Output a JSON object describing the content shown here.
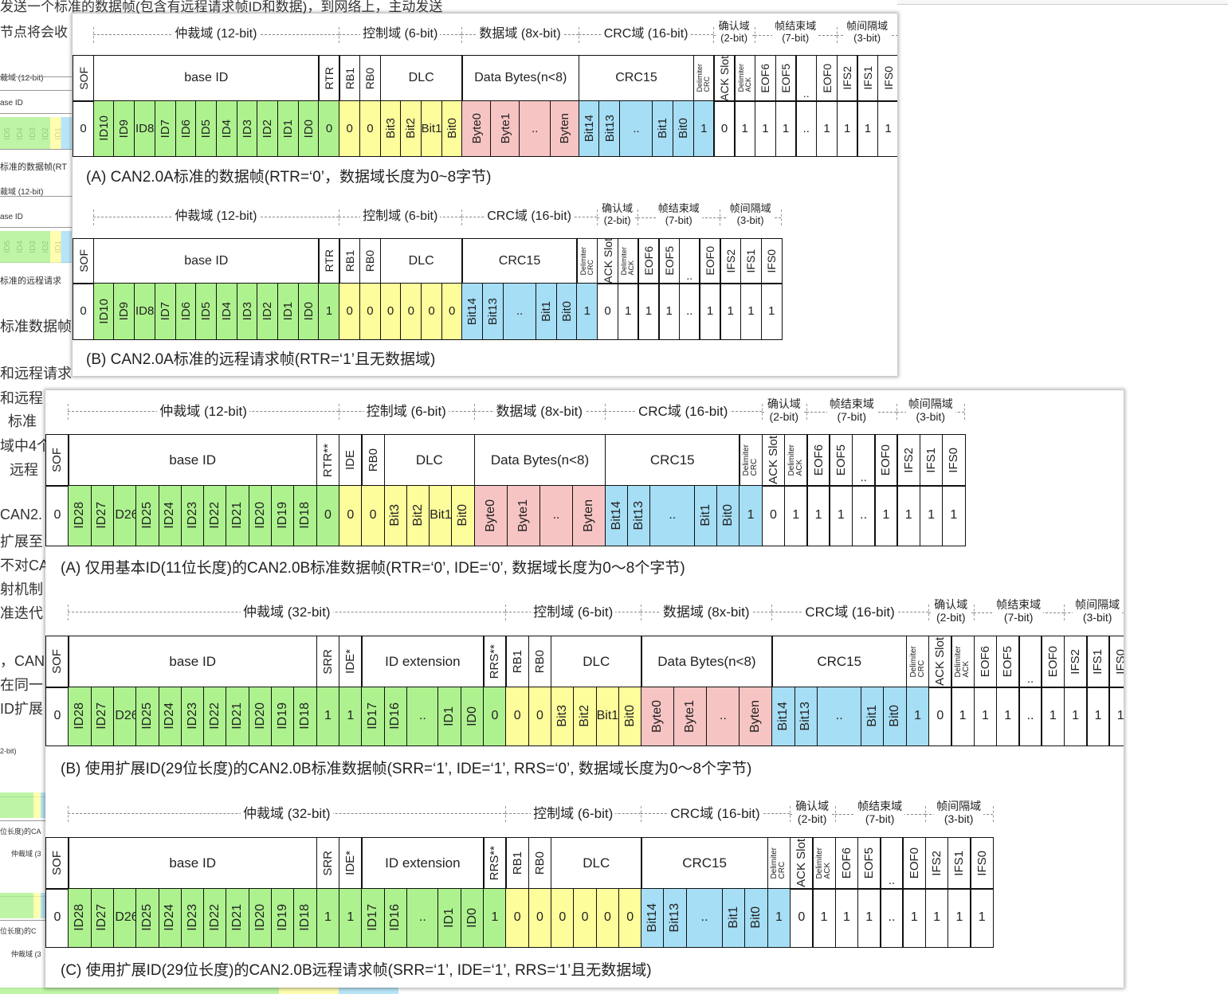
{
  "background_fragments": [
    "发送一个标准的数据帧(包含有远程请求帧ID和数据)，到网络上，主动发送",
    "节点将会收",
    "裁域 (12-bit)",
    "ase ID",
    "ID5",
    "ID4",
    "ID3",
    "ID2",
    "ID1",
    "标准的数据帧(RT",
    "裁域 (12-bit)",
    "ase ID",
    "ID5",
    "ID4",
    "ID3",
    "ID2",
    "ID1",
    "标准的远程请求",
    "标准数据帧",
    "和远程请求",
    "和远程",
    "标准",
    "域中4个",
    "远程",
    "CAN2.",
    "扩展至",
    "不对CA",
    "射机制",
    "准迭代",
    "，CAN",
    "在同一",
    "ID扩展",
    "2-bit)",
    "位长度)的CA",
    "仲裁域 (3",
    "位长度)的C",
    "仲裁域 (3"
  ],
  "fields": {
    "arb12": "仲裁域 (12-bit)",
    "arb32": "仲裁域 (32-bit)",
    "ctrl": "控制域 (6-bit)",
    "data": "数据域 (8x-bit)",
    "crc": "CRC域 (16-bit)",
    "ack": "确认域",
    "ack_bits": "(2-bit)",
    "eof": "帧结束域",
    "eof_bits": "(7-bit)",
    "ifs": "帧间隔域",
    "ifs_bits": "(3-bit)"
  },
  "labels": {
    "sof": "SOF",
    "base_id": "base ID",
    "rtr": "RTR",
    "rtr2": "RTR**",
    "rb1": "RB1",
    "rb0": "RB0",
    "ide": "IDE",
    "ide2": "IDE*",
    "srr": "SRR",
    "rrs": "RRS**",
    "id_ext": "ID extension",
    "dlc": "DLC",
    "data_bytes": "Data Bytes(n<8)",
    "crc15": "CRC15",
    "crc_del_1": "CRC",
    "crc_del_2": "Delimiter",
    "ack_slot": "ACK Slot",
    "ack_del_1": "ACK",
    "ack_del_2": "Delimiter",
    "eof6": "EOF6",
    "eof5": "EOF5",
    "eof0": "EOF0",
    "ifs2": "IFS2",
    "ifs1": "IFS1",
    "ifs0": "IFS0",
    "dots": ".."
  },
  "bits": {
    "zero": "0",
    "one": "1",
    "dots": "..",
    "id11": [
      "ID10",
      "ID9",
      "ID8",
      "ID7",
      "ID6",
      "ID5",
      "ID4",
      "ID3",
      "ID2",
      "ID1",
      "ID0"
    ],
    "id_base29": [
      "ID28",
      "ID27",
      "ID26",
      "ID25",
      "ID24",
      "ID23",
      "ID22",
      "ID21",
      "ID20",
      "ID19",
      "ID18"
    ],
    "id_ext": [
      "ID17",
      "ID16",
      "..",
      "ID1",
      "ID0"
    ],
    "dlc": [
      "Bit3",
      "Bit2",
      "Bit1",
      "Bit0"
    ],
    "data": [
      "Byte0",
      "Byte1",
      "..",
      "Byten"
    ],
    "crc": [
      "Bit14",
      "Bit13",
      "..",
      "Bit1",
      "Bit0"
    ]
  },
  "colors": {
    "green": "#aef28f",
    "yellow": "#fefd9c",
    "pink": "#f7c4c4",
    "blue": "#a6def5"
  },
  "captions": {
    "a1": "(A)  CAN2.0A标准的数据帧(RTR=‘0’，数据域长度为0~8字节)",
    "a2": "(B)  CAN2.0A标准的远程请求帧(RTR=‘1’且无数据域)",
    "b1": "(A)  仅用基本ID(11位长度)的CAN2.0B标准数据帧(RTR=‘0’, IDE=‘0’, 数据域长度为0～8个字节)",
    "b2": "(B)  使用扩展ID(29位长度)的CAN2.0B标准数据帧(SRR=‘1’, IDE=‘1’, RRS=‘0’, 数据域长度为0～8个字节)",
    "b3": "(C)  使用扩展ID(29位长度)的CAN2.0B远程请求帧(SRR=‘1’, IDE=‘1’, RRS=‘1’且无数据域)"
  }
}
